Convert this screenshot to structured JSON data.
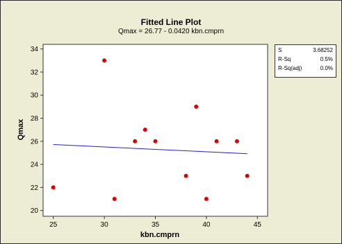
{
  "chart_data": {
    "type": "scatter",
    "title": "Fitted Line Plot",
    "subtitle": "Qmax =  26.77 - 0.0420 kbn.cmprn",
    "xlabel": "kbn.cmprn",
    "ylabel": "Qmax",
    "xlim": [
      24,
      46
    ],
    "ylim": [
      19.5,
      34.4
    ],
    "xticks": [
      25,
      30,
      35,
      40,
      45
    ],
    "yticks": [
      20,
      22,
      24,
      26,
      28,
      30,
      32,
      34
    ],
    "grid": false,
    "points": {
      "x": [
        25,
        30,
        31,
        33,
        34,
        35,
        38,
        39,
        40,
        41,
        43,
        44
      ],
      "y": [
        22,
        33,
        21,
        26,
        27,
        26,
        23,
        29,
        21,
        26,
        26,
        23
      ],
      "color": "#e00000"
    },
    "fit_line": {
      "intercept": 26.77,
      "slope": -0.042,
      "x_range": [
        25,
        44
      ],
      "color": "#1f1fd6"
    },
    "stats_table": [
      {
        "label": "S",
        "value": "3.68252"
      },
      {
        "label": "R-Sq",
        "value": "0.5%"
      },
      {
        "label": "R-Sq(adj)",
        "value": "0.0%"
      }
    ]
  }
}
